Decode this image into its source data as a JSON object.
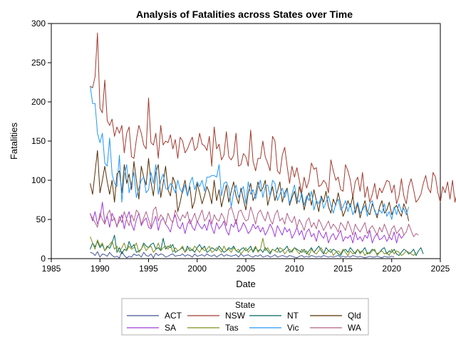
{
  "chart_data": {
    "type": "line",
    "title": "Analysis of Fatalities across States over Time",
    "xlabel": "Date",
    "ylabel": "Fatalities",
    "xlim": [
      1985,
      2025
    ],
    "ylim": [
      0,
      300
    ],
    "x_ticks": [
      1985,
      1990,
      1995,
      2000,
      2005,
      2010,
      2015,
      2020,
      2025
    ],
    "y_ticks": [
      0,
      50,
      100,
      150,
      200,
      250,
      300
    ],
    "grid": false,
    "legend": {
      "title": "State",
      "placement": "bottom"
    },
    "x_start": 1989.0,
    "x_step": 0.25,
    "series": [
      {
        "name": "ACT",
        "color": "#445694",
        "values": [
          8,
          7,
          4,
          9,
          2,
          6,
          5,
          3,
          8,
          4,
          2,
          3,
          1,
          9,
          4,
          1,
          3,
          2,
          6,
          4,
          5,
          2,
          8,
          4,
          3,
          6,
          1,
          7,
          4,
          6,
          5,
          2,
          3,
          5,
          6,
          3,
          4,
          4,
          6,
          3,
          5,
          4,
          2,
          6,
          3,
          4,
          5,
          3,
          6,
          4,
          3,
          5,
          2,
          4,
          6,
          3,
          5,
          4,
          3,
          4,
          5,
          2,
          6,
          3,
          4,
          5,
          3,
          2,
          4,
          3,
          5,
          2,
          3,
          4,
          2,
          3,
          5,
          2,
          3,
          4,
          3,
          2,
          4,
          3,
          2,
          1,
          3,
          4,
          2,
          3,
          2,
          4,
          3,
          2,
          3,
          2,
          4,
          3,
          2,
          3,
          2,
          3,
          4,
          2,
          3,
          2,
          3,
          2,
          4,
          3,
          2,
          3,
          2,
          1,
          2,
          3,
          2,
          2,
          3,
          2,
          1,
          3,
          2,
          2,
          3,
          2
        ]
      },
      {
        "name": "NSW",
        "color": "#A23A2E",
        "values": [
          220,
          218,
          232,
          288,
          192,
          186,
          228,
          176,
          170,
          178,
          156,
          168,
          160,
          170,
          135,
          160,
          168,
          130,
          128,
          152,
          170,
          160,
          145,
          140,
          205,
          148,
          145,
          160,
          128,
          170,
          145,
          150,
          148,
          158,
          140,
          152,
          128,
          155,
          150,
          135,
          140,
          148,
          155,
          138,
          142,
          160,
          146,
          144,
          138,
          156,
          118,
          168,
          140,
          146,
          126,
          132,
          162,
          130,
          126,
          132,
          160,
          118,
          120,
          134,
          130,
          118,
          164,
          124,
          112,
          128,
          128,
          150,
          130,
          122,
          112,
          156,
          150,
          112,
          108,
          132,
          142,
          118,
          96,
          118,
          104,
          116,
          100,
          84,
          104,
          90,
          100,
          122,
          114,
          116,
          92,
          94,
          100,
          96,
          84,
          126,
          112,
          100,
          104,
          88,
          86,
          120,
          112,
          100,
          78,
          98,
          104,
          86,
          110,
          78,
          92,
          72,
          82,
          96,
          76,
          90,
          84,
          92,
          100,
          98,
          84,
          94,
          70,
          80,
          102,
          80,
          70,
          92,
          102,
          88,
          72,
          76,
          82,
          96,
          106,
          90,
          84,
          110,
          104,
          84,
          72,
          92,
          84,
          98,
          76,
          100,
          72,
          86,
          82,
          80,
          90,
          84
        ]
      },
      {
        "name": "NT",
        "color": "#01665E",
        "values": [
          12,
          20,
          15,
          22,
          14,
          18,
          10,
          16,
          13,
          20,
          30,
          8,
          14,
          6,
          12,
          10,
          22,
          14,
          18,
          8,
          10,
          12,
          20,
          16,
          14,
          18,
          20,
          12,
          14,
          10,
          26,
          12,
          16,
          14,
          18,
          8,
          10,
          12,
          14,
          8,
          16,
          10,
          12,
          8,
          14,
          18,
          12,
          16,
          8,
          10,
          14,
          12,
          10,
          16,
          12,
          8,
          10,
          14,
          12,
          16,
          10,
          8,
          12,
          14,
          10,
          12,
          16,
          8,
          14,
          10,
          12,
          8,
          14,
          10,
          6,
          12,
          10,
          14,
          8,
          10,
          12,
          16,
          8,
          10,
          14,
          12,
          10,
          8,
          12,
          6,
          10,
          14,
          8,
          12,
          16,
          10,
          6,
          14,
          10,
          8,
          12,
          10,
          6,
          4,
          10,
          12,
          8,
          14,
          10,
          6,
          12,
          8,
          10,
          14,
          6,
          8,
          12,
          10,
          6,
          8,
          12,
          14,
          6,
          10,
          8,
          12,
          6,
          4,
          8,
          12,
          10,
          6,
          8,
          12,
          4,
          10,
          14,
          6
        ]
      },
      {
        "name": "Qld",
        "color": "#543005",
        "values": [
          96,
          82,
          110,
          138,
          84,
          100,
          118,
          98,
          82,
          100,
          72,
          108,
          112,
          84,
          120,
          96,
          108,
          88,
          124,
          100,
          76,
          118,
          104,
          94,
          128,
          98,
          80,
          110,
          120,
          78,
          96,
          118,
          88,
          80,
          104,
          96,
          60,
          72,
          88,
          100,
          80,
          92,
          64,
          74,
          96,
          84,
          70,
          80,
          92,
          84,
          70,
          100,
          74,
          88,
          66,
          80,
          94,
          72,
          86,
          98,
          80,
          70,
          90,
          76,
          62,
          84,
          96,
          74,
          82,
          98,
          86,
          90,
          100,
          68,
          80,
          92,
          74,
          86,
          98,
          72,
          84,
          90,
          68,
          78,
          86,
          70,
          92,
          80,
          62,
          76,
          84,
          68,
          88,
          74,
          60,
          80,
          72,
          86,
          66,
          58,
          76,
          68,
          84,
          70,
          54,
          62,
          74,
          66,
          80,
          58,
          70,
          52,
          64,
          74,
          60,
          56,
          70,
          62,
          52,
          66,
          74,
          58,
          62,
          72,
          56,
          64,
          68,
          60,
          54,
          70,
          62,
          48
        ]
      },
      {
        "name": "SA",
        "color": "#9D3CDB",
        "values": [
          58,
          48,
          60,
          44,
          52,
          72,
          46,
          54,
          40,
          58,
          50,
          42,
          48,
          56,
          38,
          52,
          60,
          44,
          36,
          50,
          58,
          42,
          48,
          52,
          40,
          38,
          46,
          54,
          36,
          48,
          52,
          44,
          40,
          34,
          48,
          56,
          42,
          38,
          46,
          32,
          44,
          50,
          40,
          36,
          48,
          42,
          38,
          44,
          36,
          50,
          40,
          32,
          46,
          38,
          42,
          48,
          36,
          30,
          44,
          40,
          50,
          34,
          38,
          46,
          40,
          32,
          36,
          44,
          38,
          42,
          34,
          40,
          30,
          36,
          44,
          38,
          28,
          42,
          36,
          30,
          40,
          34,
          38,
          26,
          32,
          40,
          30,
          36,
          24,
          34,
          38,
          28,
          32,
          22,
          36,
          30,
          26,
          34,
          20,
          28,
          32,
          24,
          30,
          36,
          22,
          28,
          26,
          30,
          20,
          34,
          24,
          28,
          22,
          30,
          26,
          36,
          20,
          28,
          32,
          24,
          26,
          30,
          22,
          28,
          24,
          34,
          20,
          32,
          26,
          30
        ]
      },
      {
        "name": "Tas",
        "color": "#7F8E1F",
        "values": [
          28,
          20,
          12,
          24,
          16,
          20,
          10,
          14,
          18,
          22,
          12,
          16,
          8,
          14,
          20,
          10,
          16,
          12,
          14,
          20,
          8,
          12,
          18,
          10,
          14,
          16,
          8,
          12,
          20,
          10,
          14,
          16,
          12,
          18,
          8,
          14,
          10,
          12,
          16,
          8,
          12,
          14,
          10,
          16,
          12,
          8,
          14,
          10,
          12,
          16,
          8,
          10,
          14,
          12,
          8,
          16,
          10,
          12,
          8,
          14,
          10,
          12,
          6,
          10,
          14,
          8,
          12,
          10,
          16,
          8,
          12,
          26,
          10,
          14,
          8,
          12,
          10,
          8,
          14,
          12,
          6,
          10,
          12,
          8,
          14,
          10,
          6,
          12,
          8,
          10,
          4,
          12,
          8,
          6,
          10,
          14,
          8,
          6,
          10,
          12,
          4,
          8,
          10,
          6,
          12,
          8,
          4,
          10,
          6,
          8,
          12,
          6,
          10,
          4,
          8,
          6,
          10,
          12,
          4,
          8,
          10,
          6,
          8,
          4,
          12,
          6,
          10,
          8,
          4,
          6,
          10,
          8,
          6,
          4,
          8
        ]
      },
      {
        "name": "Vic",
        "color": "#2597FA",
        "values": [
          220,
          198,
          198,
          160,
          148,
          160,
          122,
          118,
          154,
          108,
          96,
          92,
          132,
          72,
          106,
          120,
          84,
          96,
          110,
          78,
          90,
          100,
          104,
          84,
          88,
          110,
          96,
          120,
          82,
          100,
          108,
          90,
          88,
          96,
          92,
          84,
          100,
          88,
          84,
          94,
          80,
          96,
          104,
          88,
          98,
          92,
          100,
          86,
          104,
          104,
          106,
          106,
          104,
          120,
          80,
          96,
          98,
          90,
          66,
          84,
          94,
          78,
          86,
          92,
          70,
          98,
          82,
          88,
          76,
          90,
          100,
          78,
          92,
          94,
          80,
          100,
          96,
          74,
          82,
          90,
          78,
          88,
          70,
          82,
          94,
          76,
          72,
          84,
          68,
          80,
          74,
          86,
          62,
          74,
          70,
          78,
          64,
          72,
          80,
          68,
          58,
          70,
          76,
          62,
          66,
          74,
          60,
          70,
          56,
          64,
          72,
          58,
          62,
          68,
          54,
          70,
          74,
          60,
          56,
          62,
          58,
          70,
          54,
          60,
          50,
          66,
          56,
          70,
          60,
          64,
          56,
          66
        ]
      },
      {
        "name": "WA",
        "color": "#B26084",
        "values": [
          56,
          52,
          46,
          40,
          58,
          50,
          44,
          56,
          62,
          48,
          52,
          40,
          54,
          46,
          60,
          50,
          42,
          56,
          48,
          62,
          58,
          44,
          52,
          60,
          50,
          40,
          62,
          66,
          48,
          56,
          52,
          44,
          58,
          50,
          46,
          62,
          54,
          48,
          56,
          52,
          60,
          44,
          50,
          58,
          46,
          54,
          62,
          48,
          52,
          60,
          44,
          56,
          50,
          48,
          58,
          52,
          42,
          62,
          66,
          56,
          44,
          60,
          62,
          54,
          48,
          50,
          66,
          56,
          44,
          58,
          62,
          54,
          48,
          60,
          50,
          44,
          56,
          62,
          48,
          52,
          44,
          58,
          50,
          46,
          54,
          40,
          50,
          44,
          36,
          48,
          52,
          40,
          46,
          38,
          50,
          44,
          36,
          42,
          48,
          38,
          44,
          40,
          34,
          46,
          42,
          36,
          48,
          40,
          30,
          44,
          38,
          34,
          40,
          46,
          32,
          38,
          42,
          36,
          30,
          40,
          34,
          44,
          36,
          28,
          38,
          42,
          32,
          36,
          40,
          30,
          34,
          44,
          36,
          28,
          32,
          30
        ]
      }
    ]
  }
}
